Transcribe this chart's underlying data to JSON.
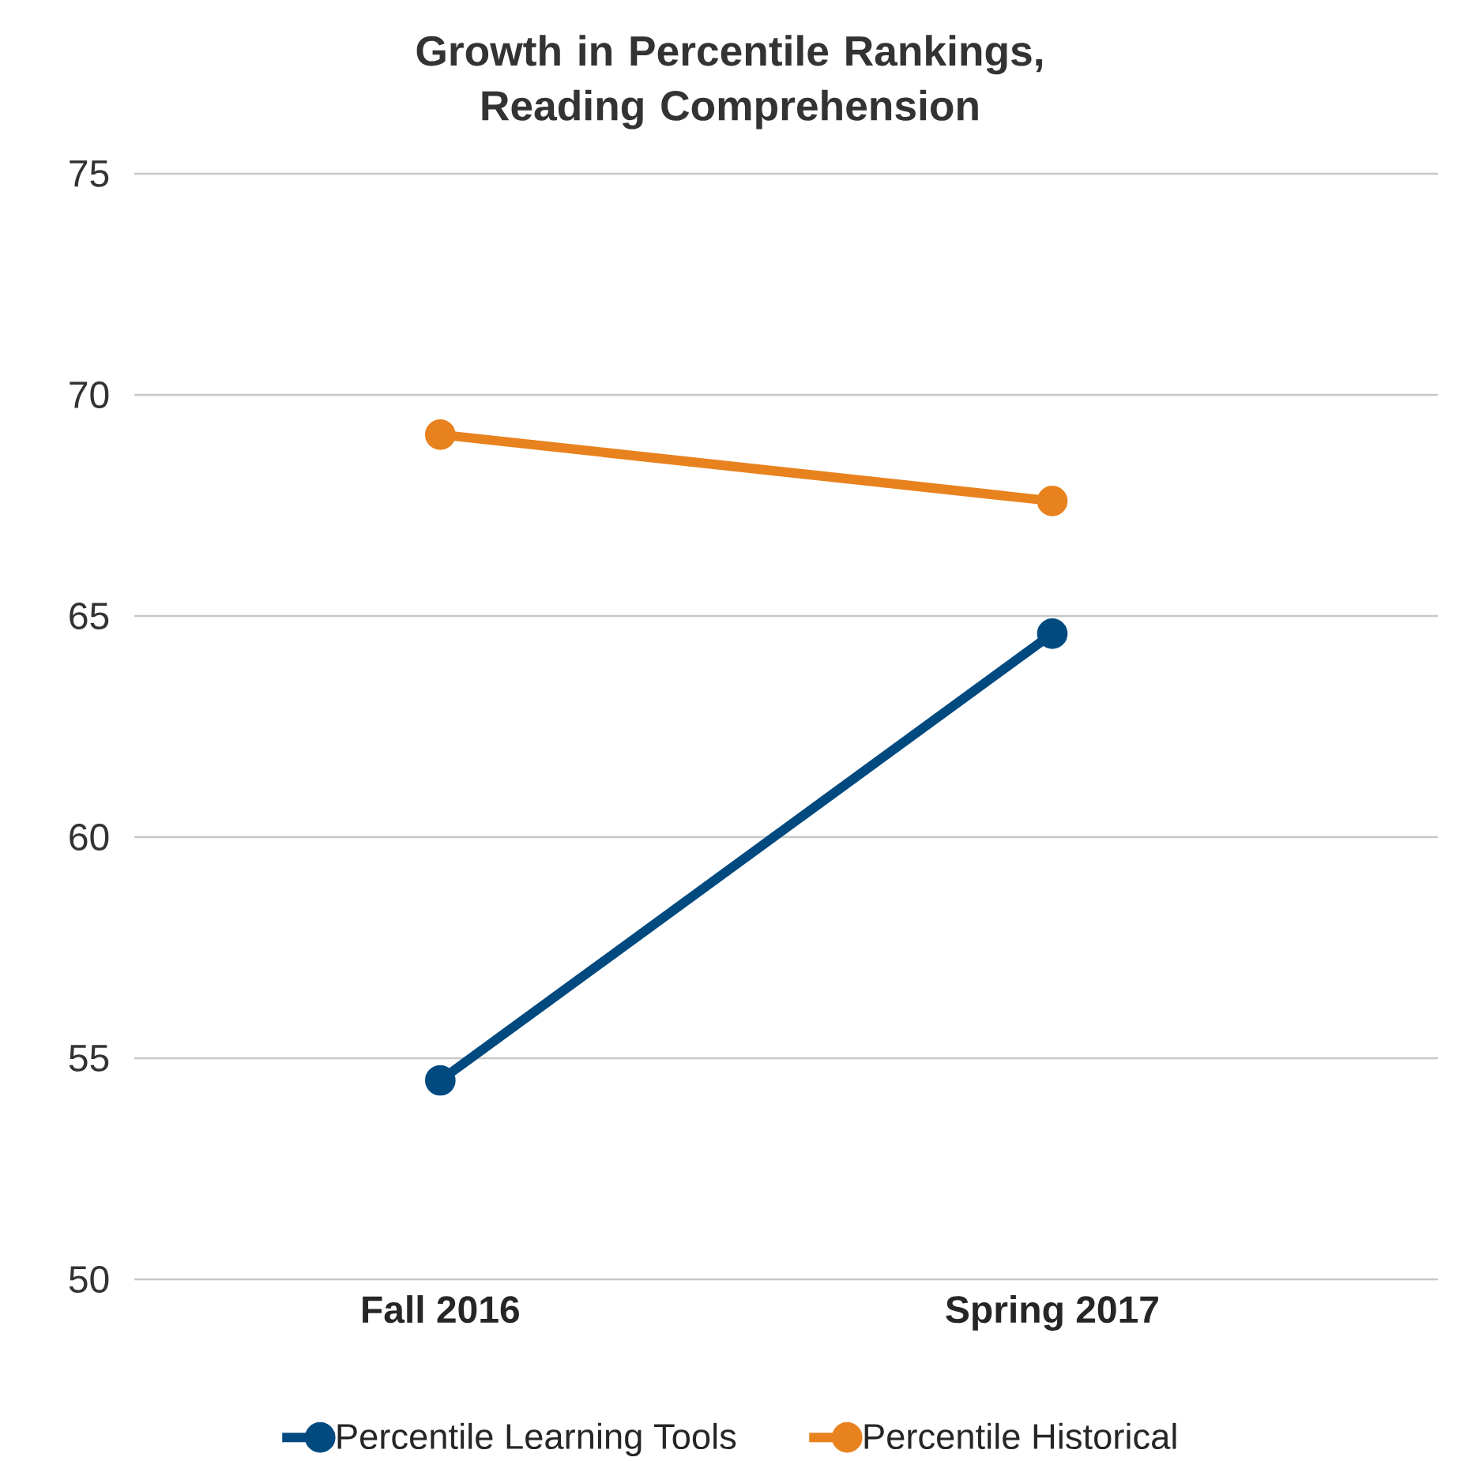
{
  "chart_data": {
    "type": "line",
    "title": "Growth in Percentile Rankings,\nReading Comprehension",
    "categories": [
      "Fall 2016",
      "Spring 2017"
    ],
    "series": [
      {
        "name": "Percentile Learning Tools",
        "color": "#004a80",
        "values": [
          54.5,
          64.6
        ]
      },
      {
        "name": "Percentile Historical",
        "color": "#e8821e",
        "values": [
          69.1,
          67.6
        ]
      }
    ],
    "ylim": [
      50,
      75
    ],
    "yticks": [
      50,
      55,
      60,
      65,
      70,
      75
    ],
    "grid": "y",
    "legend": "bottom",
    "marker": "circle",
    "line_style": "solid"
  }
}
